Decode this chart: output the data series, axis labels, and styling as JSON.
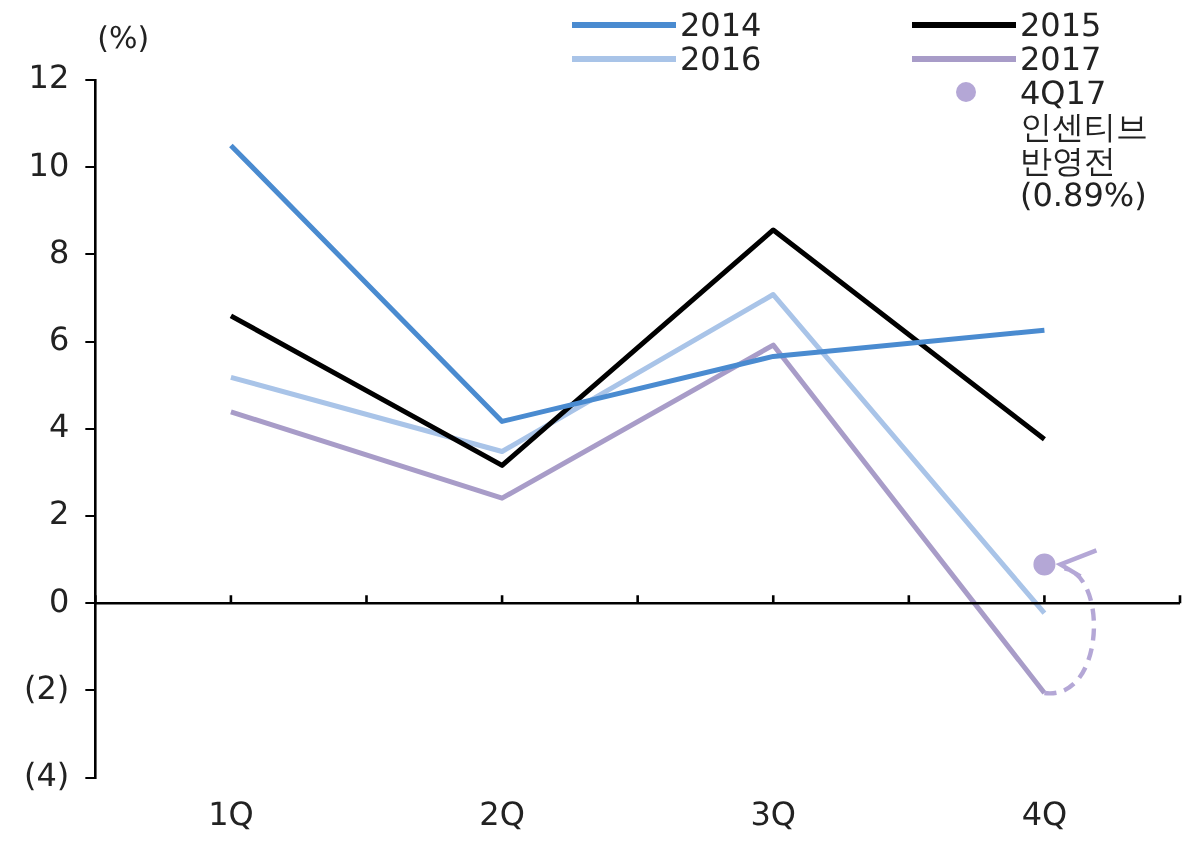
{
  "chart_data": {
    "type": "line",
    "ylabel": "(%)",
    "categories": [
      "1Q",
      "2Q",
      "3Q",
      "4Q"
    ],
    "series": [
      {
        "name": "2014",
        "color": "#4a8bd0",
        "values": [
          10.5,
          4.17,
          5.66,
          6.26
        ]
      },
      {
        "name": "2015",
        "color": "#000000",
        "values": [
          6.59,
          3.16,
          8.56,
          3.76
        ]
      },
      {
        "name": "2016",
        "color": "#a9c4e8",
        "values": [
          5.18,
          3.48,
          7.08,
          -0.23
        ]
      },
      {
        "name": "2017",
        "color": "#a89cc8",
        "values": [
          4.39,
          2.41,
          5.92,
          -2.06
        ]
      },
      {
        "name": "4Q17\n인센티브\n반영전\n(0.89%)",
        "type": "scatter",
        "marker": "circle",
        "color": "#b4a7d6",
        "x": [
          "4Q"
        ],
        "values": [
          0.89
        ]
      }
    ],
    "ylim": [
      -4,
      12
    ],
    "yticks": [
      {
        "value": -4,
        "label": "(4)"
      },
      {
        "value": -2,
        "label": "(2)"
      },
      0,
      2,
      4,
      6,
      8,
      10,
      12
    ],
    "ref_lines": [
      {
        "axis": "y",
        "value": 0
      }
    ],
    "grid": false,
    "legend": "top right",
    "marker": "none"
  }
}
